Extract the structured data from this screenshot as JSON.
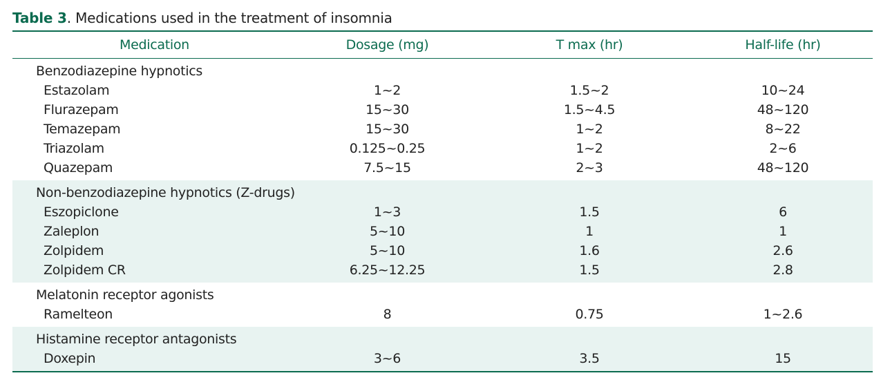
{
  "caption": {
    "label": "Table 3",
    "text": ". Medications used in the treatment of insomnia"
  },
  "headers": {
    "medication": "Medication",
    "dosage": "Dosage (mg)",
    "tmax": "T max (hr)",
    "halflife": "Half-life (hr)"
  },
  "groups": [
    {
      "name": "Benzodiazepine hypnotics",
      "rows": [
        {
          "medication": "Estazolam",
          "dosage": "1~2",
          "tmax": "1.5~2",
          "halflife": "10~24"
        },
        {
          "medication": "Flurazepam",
          "dosage": "15~30",
          "tmax": "1.5~4.5",
          "halflife": "48~120"
        },
        {
          "medication": "Temazepam",
          "dosage": "15~30",
          "tmax": "1~2",
          "halflife": "8~22"
        },
        {
          "medication": "Triazolam",
          "dosage": "0.125~0.25",
          "tmax": "1~2",
          "halflife": "2~6"
        },
        {
          "medication": "Quazepam",
          "dosage": "7.5~15",
          "tmax": "2~3",
          "halflife": "48~120"
        }
      ]
    },
    {
      "name": "Non-benzodiazepine hypnotics (Z-drugs)",
      "rows": [
        {
          "medication": "Eszopiclone",
          "dosage": "1~3",
          "tmax": "1.5",
          "halflife": "6"
        },
        {
          "medication": "Zaleplon",
          "dosage": "5~10",
          "tmax": "1",
          "halflife": "1"
        },
        {
          "medication": "Zolpidem",
          "dosage": "5~10",
          "tmax": "1.6",
          "halflife": "2.6"
        },
        {
          "medication": "Zolpidem CR",
          "dosage": "6.25~12.25",
          "tmax": "1.5",
          "halflife": "2.8"
        }
      ]
    },
    {
      "name": "Melatonin receptor agonists",
      "rows": [
        {
          "medication": "Ramelteon",
          "dosage": "8",
          "tmax": "0.75",
          "halflife": "1~2.6"
        }
      ]
    },
    {
      "name": "Histamine receptor antagonists",
      "rows": [
        {
          "medication": "Doxepin",
          "dosage": "3~6",
          "tmax": "3.5",
          "halflife": "15"
        }
      ]
    }
  ],
  "colors": {
    "accent": "#0b6b4f",
    "shade": "#e8f3f1"
  }
}
